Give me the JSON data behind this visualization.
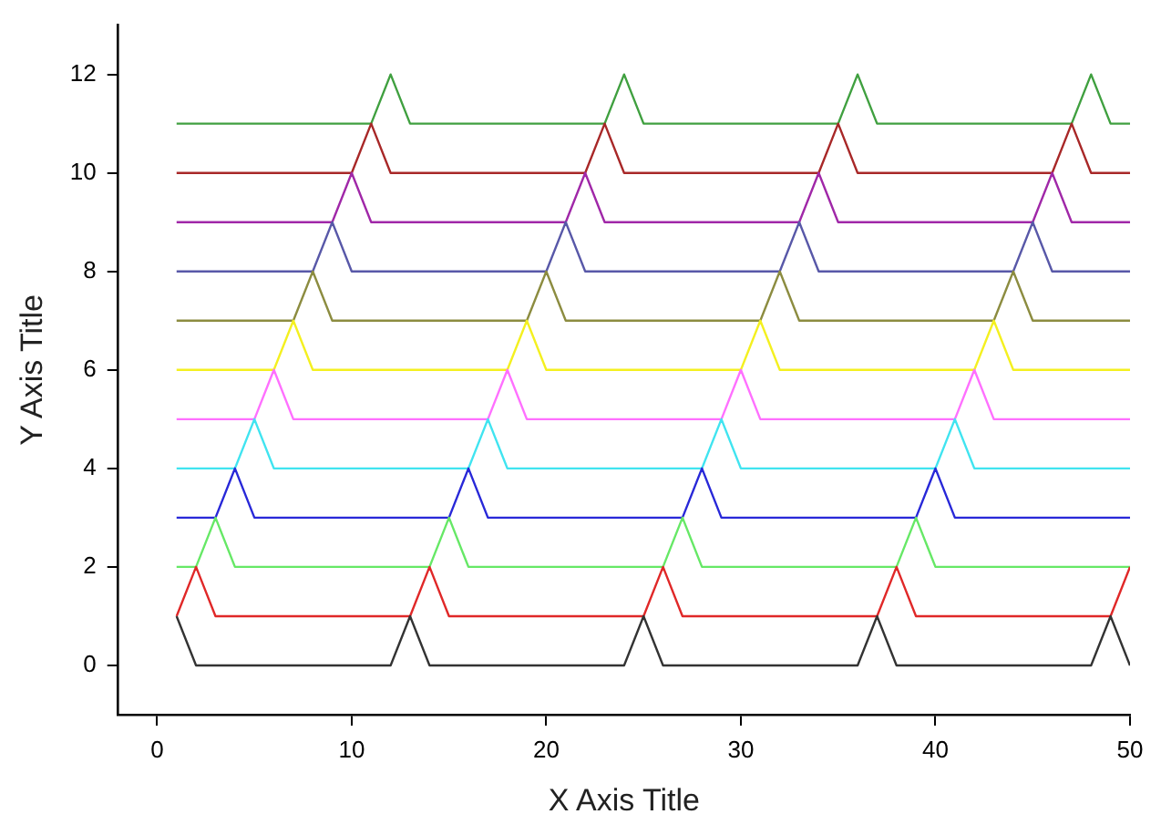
{
  "chart_data": {
    "type": "line",
    "xlabel": "X Axis Title",
    "ylabel": "Y Axis Title",
    "x": [
      1,
      2,
      3,
      4,
      5,
      6,
      7,
      8,
      9,
      10,
      11,
      12,
      13,
      14,
      15,
      16,
      17,
      18,
      19,
      20,
      21,
      22,
      23,
      24,
      25,
      26,
      27,
      28,
      29,
      30,
      31,
      32,
      33,
      34,
      35,
      36,
      37,
      38,
      39,
      40,
      41,
      42,
      43,
      44,
      45,
      46,
      47,
      48,
      49,
      50
    ],
    "xlim": [
      -2,
      50
    ],
    "xticks": [
      0,
      10,
      20,
      30,
      40,
      50
    ],
    "ylim": [
      -1,
      13
    ],
    "yticks": [
      0,
      2,
      4,
      6,
      8,
      10,
      12
    ],
    "grid": false,
    "legend": false,
    "marker": "none",
    "line_style": "solid",
    "series": [
      {
        "color": "#333333",
        "values": [
          1,
          0,
          0,
          0,
          0,
          0,
          0,
          0,
          0,
          0,
          0,
          0,
          1,
          0,
          0,
          0,
          0,
          0,
          0,
          0,
          0,
          0,
          0,
          0,
          1,
          0,
          0,
          0,
          0,
          0,
          0,
          0,
          0,
          0,
          0,
          0,
          1,
          0,
          0,
          0,
          0,
          0,
          0,
          0,
          0,
          0,
          0,
          0,
          1,
          0
        ]
      },
      {
        "color": "#e02828",
        "values": [
          1,
          2,
          1,
          1,
          1,
          1,
          1,
          1,
          1,
          1,
          1,
          1,
          1,
          2,
          1,
          1,
          1,
          1,
          1,
          1,
          1,
          1,
          1,
          1,
          1,
          2,
          1,
          1,
          1,
          1,
          1,
          1,
          1,
          1,
          1,
          1,
          1,
          2,
          1,
          1,
          1,
          1,
          1,
          1,
          1,
          1,
          1,
          1,
          1,
          2
        ]
      },
      {
        "color": "#66e866",
        "values": [
          2,
          2,
          3,
          2,
          2,
          2,
          2,
          2,
          2,
          2,
          2,
          2,
          2,
          2,
          3,
          2,
          2,
          2,
          2,
          2,
          2,
          2,
          2,
          2,
          2,
          2,
          3,
          2,
          2,
          2,
          2,
          2,
          2,
          2,
          2,
          2,
          2,
          2,
          3,
          2,
          2,
          2,
          2,
          2,
          2,
          2,
          2,
          2,
          2,
          2
        ]
      },
      {
        "color": "#2828d8",
        "values": [
          3,
          3,
          3,
          4,
          3,
          3,
          3,
          3,
          3,
          3,
          3,
          3,
          3,
          3,
          3,
          4,
          3,
          3,
          3,
          3,
          3,
          3,
          3,
          3,
          3,
          3,
          3,
          4,
          3,
          3,
          3,
          3,
          3,
          3,
          3,
          3,
          3,
          3,
          3,
          4,
          3,
          3,
          3,
          3,
          3,
          3,
          3,
          3,
          3,
          3
        ]
      },
      {
        "color": "#40e4f0",
        "values": [
          4,
          4,
          4,
          4,
          5,
          4,
          4,
          4,
          4,
          4,
          4,
          4,
          4,
          4,
          4,
          4,
          5,
          4,
          4,
          4,
          4,
          4,
          4,
          4,
          4,
          4,
          4,
          4,
          5,
          4,
          4,
          4,
          4,
          4,
          4,
          4,
          4,
          4,
          4,
          4,
          5,
          4,
          4,
          4,
          4,
          4,
          4,
          4,
          4,
          4
        ]
      },
      {
        "color": "#ff70ff",
        "values": [
          5,
          5,
          5,
          5,
          5,
          6,
          5,
          5,
          5,
          5,
          5,
          5,
          5,
          5,
          5,
          5,
          5,
          6,
          5,
          5,
          5,
          5,
          5,
          5,
          5,
          5,
          5,
          5,
          5,
          6,
          5,
          5,
          5,
          5,
          5,
          5,
          5,
          5,
          5,
          5,
          5,
          6,
          5,
          5,
          5,
          5,
          5,
          5,
          5,
          5
        ]
      },
      {
        "color": "#f4f020",
        "values": [
          6,
          6,
          6,
          6,
          6,
          6,
          7,
          6,
          6,
          6,
          6,
          6,
          6,
          6,
          6,
          6,
          6,
          6,
          7,
          6,
          6,
          6,
          6,
          6,
          6,
          6,
          6,
          6,
          6,
          6,
          7,
          6,
          6,
          6,
          6,
          6,
          6,
          6,
          6,
          6,
          6,
          6,
          7,
          6,
          6,
          6,
          6,
          6,
          6,
          6
        ]
      },
      {
        "color": "#8c8c40",
        "values": [
          7,
          7,
          7,
          7,
          7,
          7,
          7,
          8,
          7,
          7,
          7,
          7,
          7,
          7,
          7,
          7,
          7,
          7,
          7,
          8,
          7,
          7,
          7,
          7,
          7,
          7,
          7,
          7,
          7,
          7,
          7,
          8,
          7,
          7,
          7,
          7,
          7,
          7,
          7,
          7,
          7,
          7,
          7,
          8,
          7,
          7,
          7,
          7,
          7,
          7
        ]
      },
      {
        "color": "#5858a8",
        "values": [
          8,
          8,
          8,
          8,
          8,
          8,
          8,
          8,
          9,
          8,
          8,
          8,
          8,
          8,
          8,
          8,
          8,
          8,
          8,
          8,
          9,
          8,
          8,
          8,
          8,
          8,
          8,
          8,
          8,
          8,
          8,
          8,
          9,
          8,
          8,
          8,
          8,
          8,
          8,
          8,
          8,
          8,
          8,
          8,
          9,
          8,
          8,
          8,
          8,
          8
        ]
      },
      {
        "color": "#a028a8",
        "values": [
          9,
          9,
          9,
          9,
          9,
          9,
          9,
          9,
          9,
          10,
          9,
          9,
          9,
          9,
          9,
          9,
          9,
          9,
          9,
          9,
          9,
          10,
          9,
          9,
          9,
          9,
          9,
          9,
          9,
          9,
          9,
          9,
          9,
          10,
          9,
          9,
          9,
          9,
          9,
          9,
          9,
          9,
          9,
          9,
          9,
          10,
          9,
          9,
          9,
          9
        ]
      },
      {
        "color": "#a82828",
        "values": [
          10,
          10,
          10,
          10,
          10,
          10,
          10,
          10,
          10,
          10,
          11,
          10,
          10,
          10,
          10,
          10,
          10,
          10,
          10,
          10,
          10,
          10,
          11,
          10,
          10,
          10,
          10,
          10,
          10,
          10,
          10,
          10,
          10,
          10,
          11,
          10,
          10,
          10,
          10,
          10,
          10,
          10,
          10,
          10,
          10,
          10,
          11,
          10,
          10,
          10
        ]
      },
      {
        "color": "#40a040",
        "values": [
          11,
          11,
          11,
          11,
          11,
          11,
          11,
          11,
          11,
          11,
          11,
          12,
          11,
          11,
          11,
          11,
          11,
          11,
          11,
          11,
          11,
          11,
          11,
          12,
          11,
          11,
          11,
          11,
          11,
          11,
          11,
          11,
          11,
          11,
          11,
          12,
          11,
          11,
          11,
          11,
          11,
          11,
          11,
          11,
          11,
          11,
          11,
          12,
          11,
          11
        ]
      }
    ]
  }
}
